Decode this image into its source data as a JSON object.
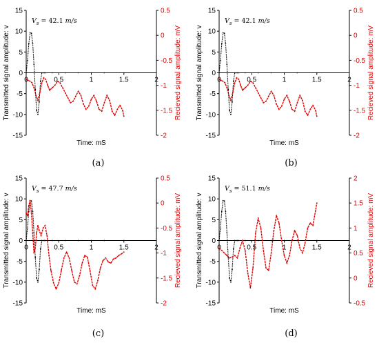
{
  "colors": {
    "transmitted": "#000000",
    "received": "#e00000",
    "axis": "#000000"
  },
  "chart_data": [
    {
      "type": "line",
      "caption": "(a)",
      "annotation": "42.1",
      "xlabel": "Time: mS",
      "ylabel": "Transmitted signal amplitude: v",
      "y2label": "Recieved signal amplitude: mV",
      "xlim": [
        0,
        2
      ],
      "xticks": [
        0,
        0.5,
        1,
        1.5,
        2
      ],
      "xticklabels": [
        "0",
        "0.5",
        "1",
        "1.5",
        "2"
      ],
      "ylim": [
        -15,
        15
      ],
      "yticks": [
        -15,
        -10,
        -5,
        0,
        5,
        10,
        15
      ],
      "yticklabels": [
        "-15",
        "-10",
        "-5",
        "0",
        "5",
        "10",
        "15"
      ],
      "y2lim": [
        -2,
        0.5
      ],
      "y2ticks": [
        -2,
        -1.5,
        -1,
        -0.5,
        0,
        0.5
      ],
      "y2ticklabels": [
        "-2",
        "-1.5",
        "-1",
        "-0.5",
        "0",
        "0.5"
      ],
      "grid": false,
      "series": [
        {
          "axis": "left",
          "color": "#000000",
          "x": [
            0.0,
            0.02,
            0.04,
            0.06,
            0.08,
            0.1,
            0.12,
            0.14,
            0.16,
            0.18,
            0.2,
            0.22,
            0.24,
            0.26,
            0.28,
            0.3,
            0.4,
            0.6,
            0.8,
            1.0,
            1.2,
            1.5
          ],
          "y": [
            0,
            3,
            7,
            9.6,
            9.5,
            7,
            2,
            -4,
            -9,
            -10,
            -7,
            -2,
            0,
            0,
            0,
            0,
            0,
            0,
            0,
            0,
            0,
            0
          ]
        },
        {
          "axis": "right",
          "color": "#e00000",
          "x": [
            0.0,
            0.03,
            0.06,
            0.09,
            0.12,
            0.15,
            0.18,
            0.21,
            0.24,
            0.27,
            0.3,
            0.33,
            0.36,
            0.4,
            0.44,
            0.48,
            0.52,
            0.56,
            0.6,
            0.64,
            0.68,
            0.72,
            0.76,
            0.8,
            0.84,
            0.88,
            0.92,
            0.96,
            1.0,
            1.04,
            1.08,
            1.12,
            1.16,
            1.2,
            1.24,
            1.28,
            1.32,
            1.36,
            1.4,
            1.44,
            1.48,
            1.5
          ],
          "y": [
            -0.88,
            -0.9,
            -0.92,
            -0.95,
            -1.05,
            -1.2,
            -1.3,
            -1.15,
            -0.95,
            -0.85,
            -0.88,
            -1.0,
            -1.1,
            -1.05,
            -1.0,
            -0.92,
            -0.95,
            -1.05,
            -1.15,
            -1.25,
            -1.35,
            -1.32,
            -1.22,
            -1.12,
            -1.2,
            -1.38,
            -1.48,
            -1.42,
            -1.28,
            -1.2,
            -1.32,
            -1.48,
            -1.52,
            -1.35,
            -1.2,
            -1.3,
            -1.52,
            -1.6,
            -1.48,
            -1.4,
            -1.5,
            -1.62
          ]
        }
      ]
    },
    {
      "type": "line",
      "caption": "(b)",
      "annotation": "42.1",
      "xlabel": "Time: mS",
      "ylabel": "Transmitted signal amplitude: v",
      "y2label": "Recieved signal amplitude: mV",
      "xlim": [
        0,
        2
      ],
      "xticks": [
        0,
        0.5,
        1,
        1.5,
        2
      ],
      "xticklabels": [
        "0",
        "0.5",
        "1",
        "1.5",
        "2"
      ],
      "ylim": [
        -15,
        15
      ],
      "yticks": [
        -15,
        -10,
        -5,
        0,
        5,
        10,
        15
      ],
      "yticklabels": [
        "-15",
        "-10",
        "-5",
        "0",
        "5",
        "10",
        "15"
      ],
      "y2lim": [
        -2,
        0.5
      ],
      "y2ticks": [
        -2,
        -1.5,
        -1,
        -0.5,
        0,
        0.5
      ],
      "y2ticklabels": [
        "-2",
        "-1.5",
        "-1",
        "-0.5",
        "0",
        "0.5"
      ],
      "grid": false,
      "series": [
        {
          "axis": "left",
          "color": "#000000",
          "x": [
            0.0,
            0.02,
            0.04,
            0.06,
            0.08,
            0.1,
            0.12,
            0.14,
            0.16,
            0.18,
            0.2,
            0.22,
            0.24,
            0.26,
            0.28,
            0.3,
            0.4,
            0.6,
            0.8,
            1.0,
            1.2,
            1.5
          ],
          "y": [
            0,
            3,
            7,
            9.6,
            9.5,
            7,
            2,
            -4,
            -9,
            -10,
            -7,
            -2,
            0,
            0,
            0,
            0,
            0,
            0,
            0,
            0,
            0,
            0
          ]
        },
        {
          "axis": "right",
          "color": "#e00000",
          "x": [
            0.0,
            0.03,
            0.06,
            0.09,
            0.12,
            0.15,
            0.18,
            0.21,
            0.24,
            0.27,
            0.3,
            0.33,
            0.36,
            0.4,
            0.44,
            0.48,
            0.52,
            0.56,
            0.6,
            0.64,
            0.68,
            0.72,
            0.76,
            0.8,
            0.84,
            0.88,
            0.92,
            0.96,
            1.0,
            1.04,
            1.08,
            1.12,
            1.16,
            1.2,
            1.24,
            1.28,
            1.32,
            1.36,
            1.4,
            1.44,
            1.48,
            1.5
          ],
          "y": [
            -0.88,
            -0.9,
            -0.92,
            -0.95,
            -1.05,
            -1.2,
            -1.3,
            -1.15,
            -0.95,
            -0.85,
            -0.88,
            -1.0,
            -1.1,
            -1.05,
            -1.0,
            -0.92,
            -0.95,
            -1.05,
            -1.15,
            -1.25,
            -1.35,
            -1.32,
            -1.22,
            -1.12,
            -1.2,
            -1.38,
            -1.48,
            -1.42,
            -1.28,
            -1.2,
            -1.32,
            -1.48,
            -1.52,
            -1.35,
            -1.2,
            -1.3,
            -1.52,
            -1.6,
            -1.48,
            -1.4,
            -1.5,
            -1.62
          ]
        }
      ]
    },
    {
      "type": "line",
      "caption": "(c)",
      "annotation": "47.7",
      "xlabel": "Time: mS",
      "ylabel": "Transmitted signal amplitude: v",
      "y2label": "Recieved signal amplitude: mV",
      "xlim": [
        0,
        2
      ],
      "xticks": [
        0,
        0.5,
        1,
        1.5,
        2
      ],
      "xticklabels": [
        "0",
        "0.5",
        "1",
        "1.5",
        "2"
      ],
      "ylim": [
        -15,
        15
      ],
      "yticks": [
        -15,
        -10,
        -5,
        0,
        5,
        10,
        15
      ],
      "yticklabels": [
        "-15",
        "-10",
        "-5",
        "0",
        "5",
        "10",
        "15"
      ],
      "y2lim": [
        -2,
        0.5
      ],
      "y2ticks": [
        -2,
        -1.5,
        -1,
        -0.5,
        0,
        0.5
      ],
      "y2ticklabels": [
        "-2",
        "-1.5",
        "-1",
        "-0.5",
        "0",
        "0.5"
      ],
      "grid": false,
      "series": [
        {
          "axis": "left",
          "color": "#000000",
          "x": [
            0.0,
            0.02,
            0.04,
            0.06,
            0.08,
            0.1,
            0.12,
            0.14,
            0.16,
            0.18,
            0.2,
            0.22,
            0.24,
            0.26,
            0.28,
            0.3,
            0.4,
            0.6,
            0.8,
            1.0,
            1.2,
            1.5
          ],
          "y": [
            0,
            3,
            7,
            9.6,
            9.5,
            7,
            2,
            -4,
            -9,
            -10,
            -7,
            -2,
            0,
            0,
            0,
            0,
            0,
            0,
            0,
            0,
            0,
            0
          ]
        },
        {
          "axis": "right",
          "color": "#e00000",
          "x": [
            0.0,
            0.02,
            0.04,
            0.06,
            0.08,
            0.1,
            0.12,
            0.14,
            0.16,
            0.18,
            0.2,
            0.23,
            0.26,
            0.29,
            0.32,
            0.35,
            0.38,
            0.42,
            0.46,
            0.5,
            0.54,
            0.58,
            0.62,
            0.66,
            0.7,
            0.74,
            0.78,
            0.82,
            0.86,
            0.9,
            0.94,
            0.98,
            1.02,
            1.06,
            1.1,
            1.14,
            1.18,
            1.22,
            1.26,
            1.3,
            1.34,
            1.38,
            1.42,
            1.46,
            1.5
          ],
          "y": [
            -0.2,
            -0.25,
            -0.05,
            0.05,
            -0.2,
            -0.6,
            -1.0,
            -0.9,
            -0.6,
            -0.45,
            -0.55,
            -0.65,
            -0.5,
            -0.45,
            -0.65,
            -1.05,
            -1.35,
            -1.6,
            -1.72,
            -1.6,
            -1.35,
            -1.1,
            -0.98,
            -1.1,
            -1.35,
            -1.58,
            -1.62,
            -1.45,
            -1.2,
            -1.05,
            -1.08,
            -1.35,
            -1.65,
            -1.72,
            -1.55,
            -1.3,
            -1.15,
            -1.1,
            -1.18,
            -1.2,
            -1.12,
            -1.1,
            -1.05,
            -1.02,
            -0.98
          ]
        }
      ]
    },
    {
      "type": "line",
      "caption": "(d)",
      "annotation": "51.1",
      "xlabel": "Time: mS",
      "ylabel": "Transmitted signal amplitude: v",
      "y2label": "Recieved signal amplitude: mV",
      "xlim": [
        0,
        2
      ],
      "xticks": [
        0,
        0.5,
        1,
        1.5,
        2
      ],
      "xticklabels": [
        "0",
        "0.5",
        "1",
        "1.5",
        "2"
      ],
      "ylim": [
        -15,
        15
      ],
      "yticks": [
        -15,
        -10,
        -5,
        0,
        5,
        10,
        15
      ],
      "yticklabels": [
        "-15",
        "-10",
        "-5",
        "0",
        "5",
        "10",
        "15"
      ],
      "y2lim": [
        -0.5,
        2
      ],
      "y2ticks": [
        -0.5,
        0,
        0.5,
        1,
        1.5,
        2
      ],
      "y2ticklabels": [
        "-0.5",
        "0",
        "0.5",
        "1",
        "1.5",
        "2"
      ],
      "grid": false,
      "series": [
        {
          "axis": "left",
          "color": "#000000",
          "x": [
            0.0,
            0.02,
            0.04,
            0.06,
            0.08,
            0.1,
            0.12,
            0.14,
            0.16,
            0.18,
            0.2,
            0.22,
            0.24,
            0.26,
            0.28,
            0.3,
            0.4,
            0.6,
            0.8,
            1.0,
            1.2,
            1.5
          ],
          "y": [
            0,
            3,
            7,
            9.6,
            9.5,
            7,
            2,
            -4,
            -9,
            -10,
            -7,
            -2,
            0,
            0,
            0,
            0,
            0,
            0,
            0,
            0,
            0,
            0
          ]
        },
        {
          "axis": "right",
          "color": "#e00000",
          "x": [
            0.0,
            0.04,
            0.08,
            0.12,
            0.16,
            0.2,
            0.24,
            0.28,
            0.32,
            0.36,
            0.4,
            0.44,
            0.48,
            0.52,
            0.56,
            0.6,
            0.64,
            0.68,
            0.72,
            0.76,
            0.8,
            0.84,
            0.88,
            0.92,
            0.96,
            1.0,
            1.04,
            1.08,
            1.12,
            1.16,
            1.2,
            1.24,
            1.28,
            1.32,
            1.36,
            1.4,
            1.44,
            1.48,
            1.5
          ],
          "y": [
            0.6,
            0.55,
            0.5,
            0.45,
            0.4,
            0.42,
            0.45,
            0.4,
            0.6,
            0.75,
            0.55,
            0.1,
            -0.2,
            0.2,
            0.9,
            1.2,
            1.0,
            0.55,
            0.2,
            0.15,
            0.5,
            0.95,
            1.25,
            1.1,
            0.75,
            0.45,
            0.3,
            0.45,
            0.75,
            0.95,
            0.85,
            0.6,
            0.5,
            0.7,
            1.0,
            1.1,
            1.05,
            1.35,
            1.5
          ]
        }
      ]
    }
  ]
}
